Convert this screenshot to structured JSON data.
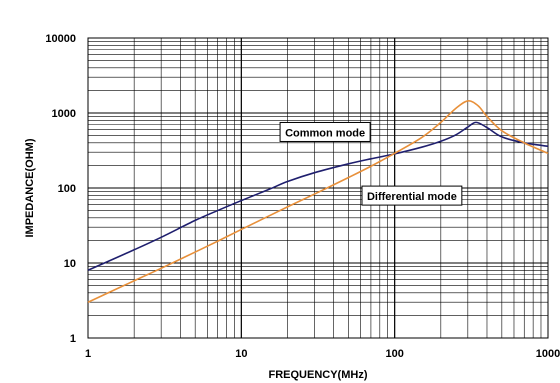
{
  "chart_data": {
    "type": "line",
    "title": "",
    "xlabel": "FREQUENCY(MHz)",
    "ylabel": "IMPEDANCE(OHM)",
    "xscale": "log",
    "yscale": "log",
    "xlim": [
      1,
      1000
    ],
    "ylim": [
      1,
      10000
    ],
    "grid": true,
    "legend": "none",
    "x_tick_labels": [
      "1",
      "10",
      "100",
      "1000"
    ],
    "y_tick_labels": [
      "1",
      "10",
      "100",
      "1000",
      "10000"
    ],
    "series": [
      {
        "color": "#1f1f6e",
        "points": [
          [
            1,
            8
          ],
          [
            2,
            15
          ],
          [
            3,
            22
          ],
          [
            5,
            37
          ],
          [
            7,
            50
          ],
          [
            10,
            68
          ],
          [
            15,
            95
          ],
          [
            20,
            122
          ],
          [
            30,
            160
          ],
          [
            50,
            210
          ],
          [
            70,
            245
          ],
          [
            100,
            285
          ],
          [
            150,
            350
          ],
          [
            200,
            420
          ],
          [
            250,
            510
          ],
          [
            300,
            650
          ],
          [
            340,
            750
          ],
          [
            400,
            640
          ],
          [
            500,
            480
          ],
          [
            700,
            400
          ],
          [
            1000,
            360
          ]
        ]
      },
      {
        "color": "#e8903a",
        "points": [
          [
            1,
            3
          ],
          [
            2,
            5.8
          ],
          [
            3,
            8.5
          ],
          [
            5,
            14
          ],
          [
            7,
            19.5
          ],
          [
            10,
            28
          ],
          [
            20,
            56
          ],
          [
            30,
            83
          ],
          [
            50,
            138
          ],
          [
            70,
            195
          ],
          [
            100,
            290
          ],
          [
            150,
            470
          ],
          [
            200,
            750
          ],
          [
            250,
            1150
          ],
          [
            300,
            1450
          ],
          [
            350,
            1250
          ],
          [
            400,
            900
          ],
          [
            500,
            580
          ],
          [
            700,
            400
          ],
          [
            1000,
            290
          ]
        ]
      }
    ],
    "annotations": [
      {
        "text": "Common mode",
        "x": 19,
        "y": 550
      },
      {
        "text": "Differential mode",
        "x": 65,
        "y": 78
      }
    ]
  }
}
